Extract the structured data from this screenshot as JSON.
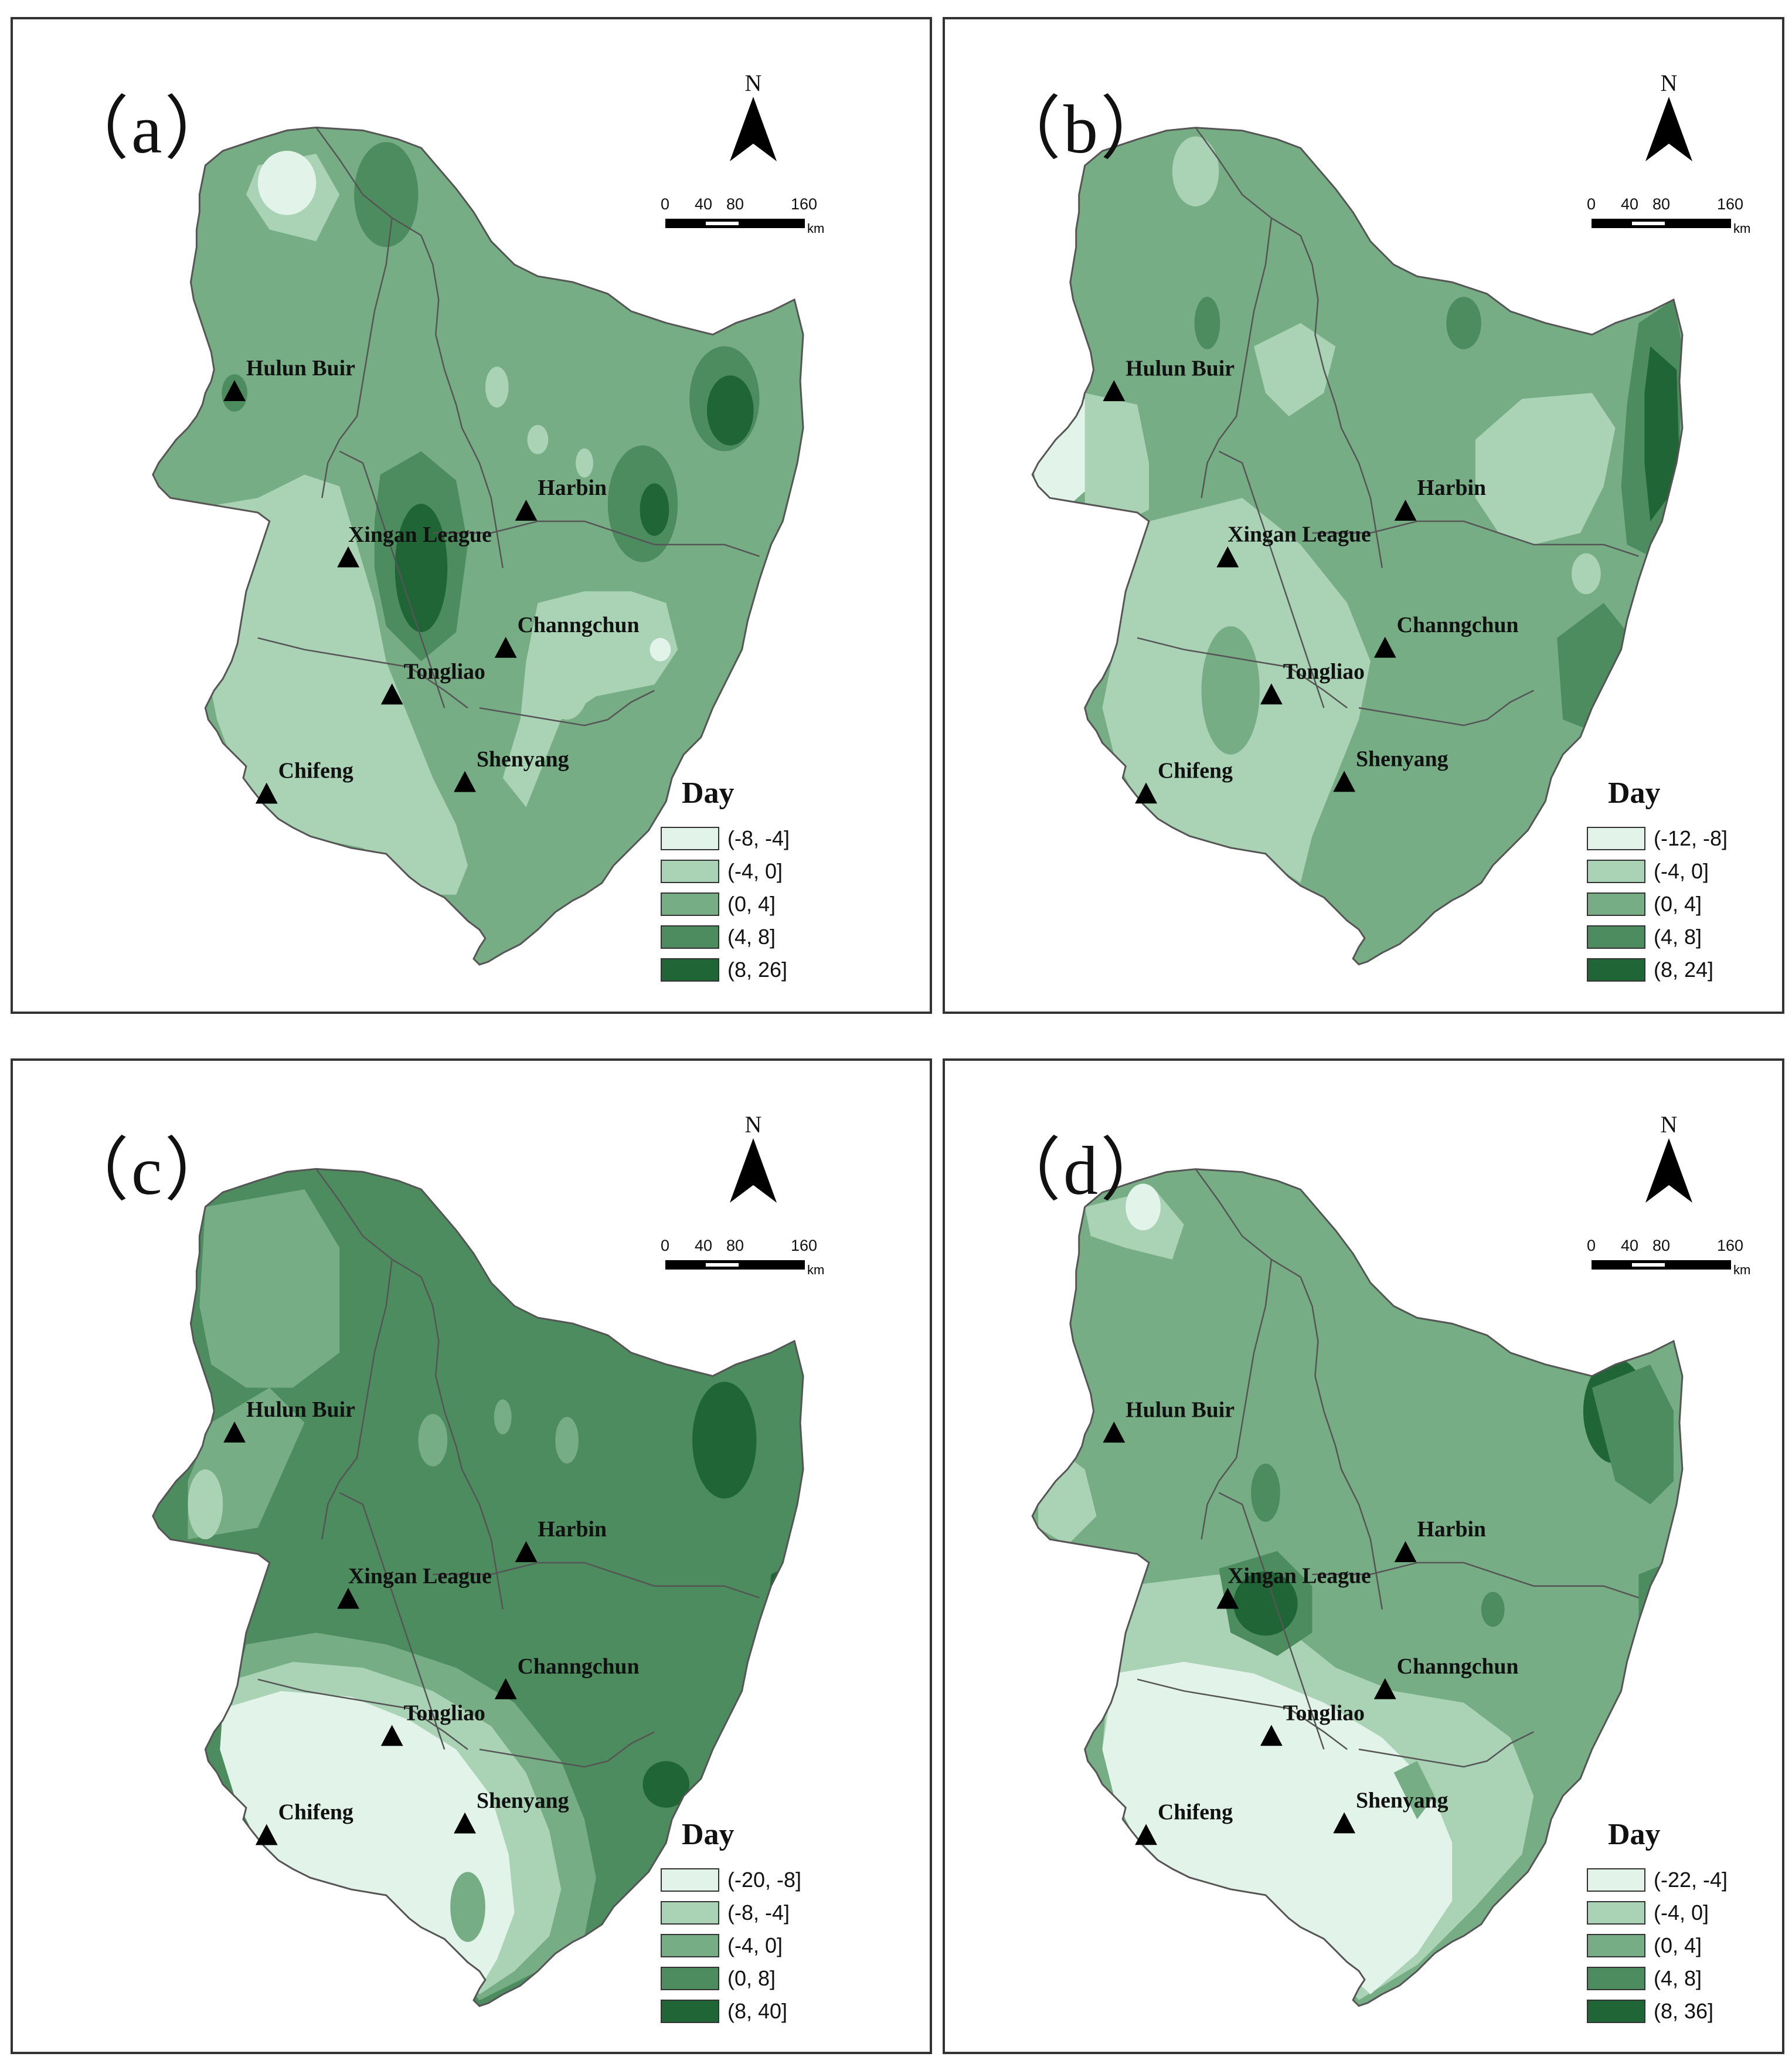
{
  "colors": {
    "c1": "#e2f4e9",
    "c2": "#a9d3b4",
    "c3": "#77ad85",
    "c4": "#4c8c5e",
    "c5": "#1f6535",
    "border": "#555555"
  },
  "north_label": "N",
  "scale": {
    "ticks": [
      "0",
      "40",
      "80",
      "160"
    ],
    "unit": "km"
  },
  "legend_title": "Day",
  "cities": [
    "Hulun Buir",
    "Harbin",
    "Xingan League",
    "Channgchun",
    "Tongliao",
    "Chifeng",
    "Shenyang"
  ],
  "panels": [
    {
      "label": "（a）",
      "legend": [
        "(-8, -4]",
        "(-4, 0]",
        "(0, 4]",
        "(4, 8]",
        "(8, 26]"
      ],
      "pattern": "a"
    },
    {
      "label": "（b）",
      "legend": [
        "(-12, -8]",
        "(-4, 0]",
        "(0, 4]",
        "(4, 8]",
        "(8, 24]"
      ],
      "pattern": "b"
    },
    {
      "label": "（c）",
      "legend": [
        "(-20, -8]",
        "(-8, -4]",
        "(-4, 0]",
        "(0, 8]",
        "(8, 40]"
      ],
      "pattern": "c"
    },
    {
      "label": "（d）",
      "legend": [
        "(-22, -4]",
        "(-4, 0]",
        "(0, 4]",
        "(4, 8]",
        "(8, 36]"
      ],
      "pattern": "d"
    }
  ]
}
